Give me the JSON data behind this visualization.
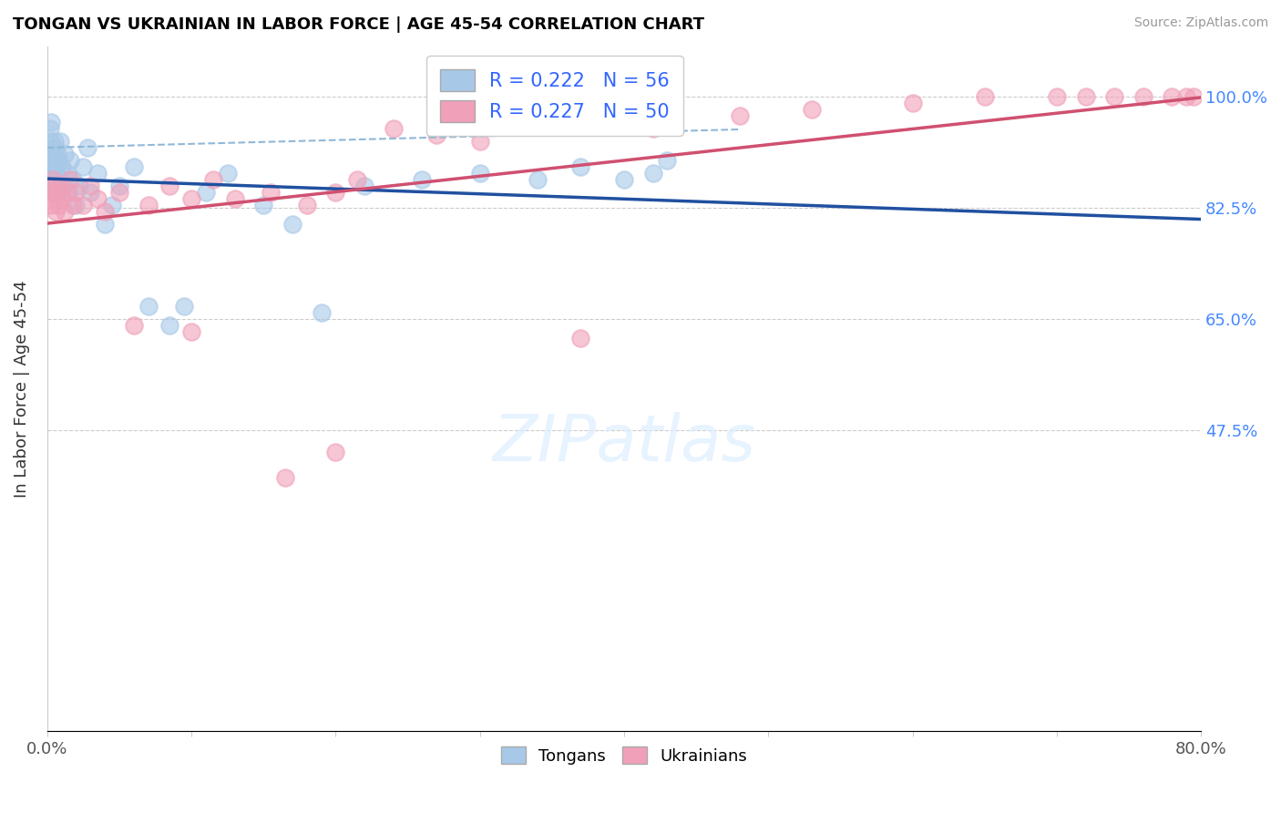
{
  "title": "TONGAN VS UKRAINIAN IN LABOR FORCE | AGE 45-54 CORRELATION CHART",
  "source": "Source: ZipAtlas.com",
  "ylabel": "In Labor Force | Age 45-54",
  "xlim": [
    0.0,
    0.8
  ],
  "ylim": [
    0.0,
    1.08
  ],
  "xticks": [
    0.0,
    0.1,
    0.2,
    0.3,
    0.4,
    0.5,
    0.6,
    0.7,
    0.8
  ],
  "xticklabels": [
    "0.0%",
    "",
    "",
    "",
    "",
    "",
    "",
    "",
    "80.0%"
  ],
  "yticks": [
    0.0,
    0.175,
    0.35,
    0.525,
    0.7,
    0.875,
    1.0
  ],
  "yticklabels": [
    "",
    "",
    "",
    "",
    "",
    "",
    ""
  ],
  "yticks_right": [
    0.475,
    0.65,
    0.825,
    1.0
  ],
  "yticklabels_right": [
    "47.5%",
    "65.0%",
    "82.5%",
    "100.0%"
  ],
  "R_tongans": 0.222,
  "N_tongans": 56,
  "R_ukrainians": 0.227,
  "N_ukrainians": 50,
  "tongans_color": "#A8C8E8",
  "ukrainians_color": "#F0A0B8",
  "trendline_tongans_color": "#2050A0",
  "trendline_ukrainians_color": "#D05070",
  "dashed_line_color": "#90B8D8",
  "background_color": "#FFFFFF",
  "grid_color": "#CCCCCC",
  "title_color": "#000000",
  "source_color": "#999999",
  "axis_label_color": "#333333",
  "tick_label_color_y": "#4488FF",
  "tick_label_color_x": "#555555",
  "tongans_x": [
    0.001,
    0.001,
    0.002,
    0.002,
    0.002,
    0.003,
    0.003,
    0.003,
    0.004,
    0.004,
    0.004,
    0.005,
    0.005,
    0.005,
    0.006,
    0.006,
    0.006,
    0.007,
    0.007,
    0.008,
    0.008,
    0.009,
    0.009,
    0.01,
    0.011,
    0.012,
    0.014,
    0.015,
    0.016,
    0.018,
    0.02,
    0.022,
    0.025,
    0.028,
    0.03,
    0.035,
    0.04,
    0.045,
    0.05,
    0.06,
    0.07,
    0.085,
    0.095,
    0.11,
    0.125,
    0.15,
    0.17,
    0.19,
    0.22,
    0.26,
    0.3,
    0.34,
    0.37,
    0.4,
    0.42,
    0.43
  ],
  "tongans_y": [
    0.88,
    0.87,
    0.9,
    0.93,
    0.95,
    0.91,
    0.89,
    0.96,
    0.85,
    0.88,
    0.92,
    0.87,
    0.93,
    0.9,
    0.86,
    0.89,
    0.92,
    0.88,
    0.91,
    0.85,
    0.9,
    0.87,
    0.93,
    0.89,
    0.86,
    0.91,
    0.88,
    0.85,
    0.9,
    0.87,
    0.83,
    0.86,
    0.89,
    0.92,
    0.85,
    0.88,
    0.8,
    0.83,
    0.86,
    0.89,
    0.67,
    0.64,
    0.67,
    0.85,
    0.88,
    0.83,
    0.8,
    0.66,
    0.86,
    0.87,
    0.88,
    0.87,
    0.89,
    0.87,
    0.88,
    0.9
  ],
  "ukrainians_x": [
    0.001,
    0.002,
    0.003,
    0.004,
    0.005,
    0.006,
    0.007,
    0.008,
    0.009,
    0.01,
    0.012,
    0.014,
    0.016,
    0.018,
    0.02,
    0.025,
    0.03,
    0.035,
    0.04,
    0.05,
    0.06,
    0.07,
    0.085,
    0.1,
    0.115,
    0.13,
    0.155,
    0.18,
    0.2,
    0.215,
    0.24,
    0.27,
    0.3,
    0.36,
    0.42,
    0.48,
    0.53,
    0.6,
    0.65,
    0.7,
    0.72,
    0.74,
    0.76,
    0.78,
    0.79,
    0.795,
    0.165,
    0.2,
    0.1,
    0.37
  ],
  "ukrainians_y": [
    0.86,
    0.85,
    0.83,
    0.87,
    0.84,
    0.82,
    0.85,
    0.83,
    0.86,
    0.84,
    0.82,
    0.85,
    0.87,
    0.83,
    0.85,
    0.83,
    0.86,
    0.84,
    0.82,
    0.85,
    0.64,
    0.83,
    0.86,
    0.84,
    0.87,
    0.84,
    0.85,
    0.83,
    0.85,
    0.87,
    0.95,
    0.94,
    0.93,
    0.96,
    0.95,
    0.97,
    0.98,
    0.99,
    1.0,
    1.0,
    1.0,
    1.0,
    1.0,
    1.0,
    1.0,
    1.0,
    0.4,
    0.44,
    0.63,
    0.62
  ]
}
